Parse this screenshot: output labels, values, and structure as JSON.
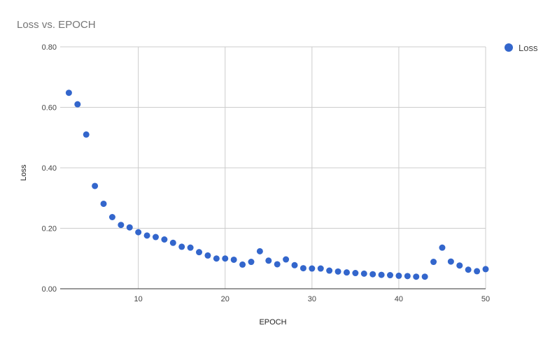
{
  "chart_data": {
    "type": "scatter",
    "title": "Loss vs. EPOCH",
    "xlabel": "EPOCH",
    "ylabel": "Loss",
    "xlim": [
      1,
      50
    ],
    "ylim": [
      0,
      0.8
    ],
    "x_ticks": [
      10,
      20,
      30,
      40,
      50
    ],
    "x_tick_labels": [
      "10",
      "20",
      "30",
      "40",
      "50"
    ],
    "y_ticks": [
      0,
      0.2,
      0.4,
      0.6,
      0.8
    ],
    "y_tick_labels": [
      "0.00",
      "0.20",
      "0.40",
      "0.60",
      "0.80"
    ],
    "grid": true,
    "legend_position": "top-right",
    "series": [
      {
        "name": "Loss",
        "color": "#3366cc",
        "x": [
          2,
          3,
          4,
          5,
          6,
          7,
          8,
          9,
          10,
          11,
          12,
          13,
          14,
          15,
          16,
          17,
          18,
          19,
          20,
          21,
          22,
          23,
          24,
          25,
          26,
          27,
          28,
          29,
          30,
          31,
          32,
          33,
          34,
          35,
          36,
          37,
          38,
          39,
          40,
          41,
          42,
          43,
          44,
          45,
          46,
          47,
          48,
          49,
          50
        ],
        "y": [
          0.648,
          0.61,
          0.51,
          0.34,
          0.281,
          0.237,
          0.211,
          0.203,
          0.187,
          0.176,
          0.171,
          0.163,
          0.152,
          0.139,
          0.136,
          0.121,
          0.11,
          0.1,
          0.1,
          0.096,
          0.08,
          0.089,
          0.124,
          0.093,
          0.081,
          0.097,
          0.078,
          0.068,
          0.067,
          0.067,
          0.06,
          0.057,
          0.054,
          0.052,
          0.05,
          0.048,
          0.046,
          0.045,
          0.043,
          0.042,
          0.04,
          0.04,
          0.089,
          0.136,
          0.09,
          0.077,
          0.063,
          0.058,
          0.065
        ]
      }
    ]
  }
}
